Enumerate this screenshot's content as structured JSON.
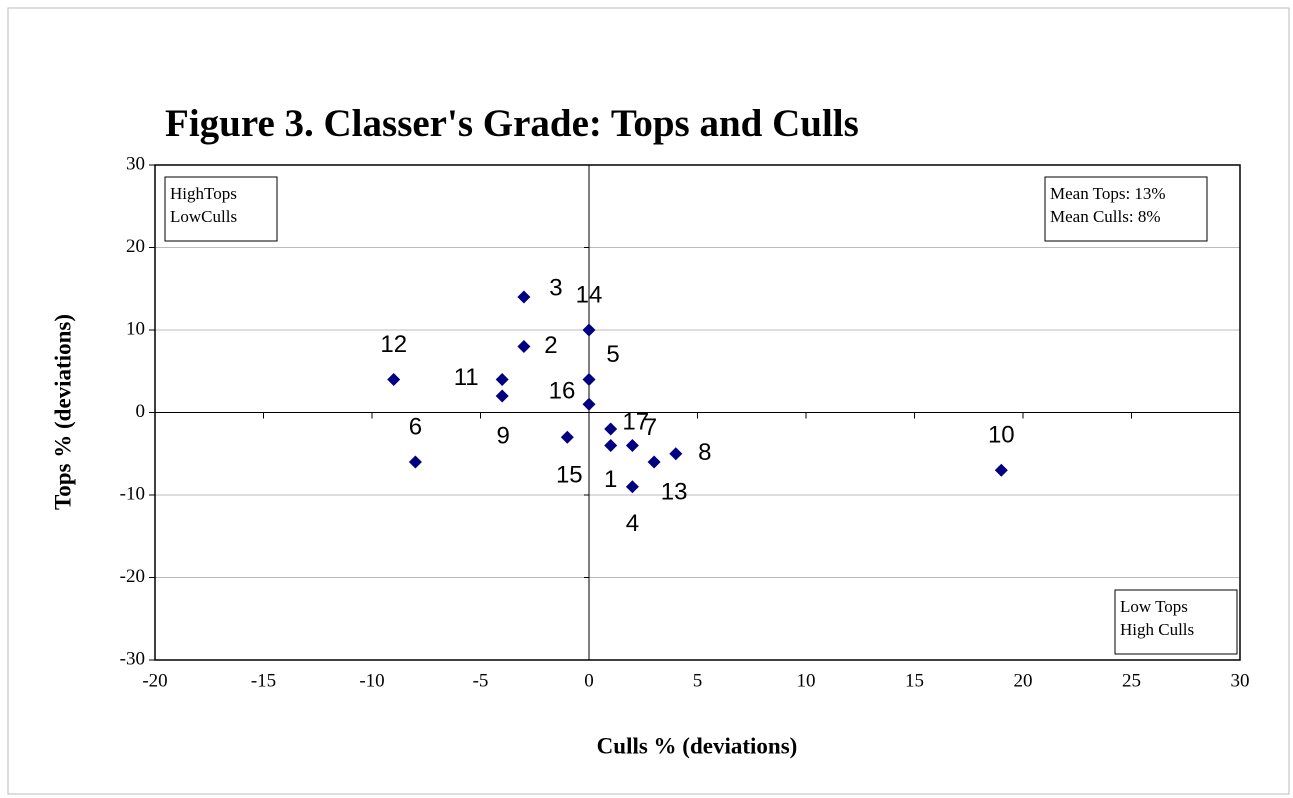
{
  "chart_data": {
    "type": "scatter",
    "title": "Figure 3. Classer's Grade: Tops and Culls",
    "x_label": "Culls % (deviations)",
    "y_label": "Tops % (deviations)",
    "xlim": [
      -20,
      30
    ],
    "xticks": [
      -20,
      -15,
      -10,
      -5,
      0,
      5,
      10,
      15,
      20,
      25,
      30
    ],
    "ylim": [
      -30,
      30
    ],
    "yticks": [
      -30,
      -20,
      -10,
      0,
      10,
      20,
      30
    ],
    "grid": true,
    "series": [
      {
        "color": "#000080",
        "point_labels": [
          "1",
          "2",
          "3",
          "4",
          "5",
          "6",
          "7",
          "8",
          "9",
          "10",
          "11",
          "12",
          "13",
          "14",
          "15",
          "16",
          "17"
        ],
        "x": [
          1,
          -3,
          -3,
          2,
          0,
          -8,
          2,
          4,
          -4,
          19,
          -4,
          -9,
          3,
          0,
          -1,
          0,
          1
        ],
        "values": [
          -4,
          8,
          14,
          -9,
          4,
          -6,
          -4,
          -5,
          2,
          -7,
          4,
          4,
          -6,
          10,
          -3,
          1,
          -2
        ]
      }
    ],
    "annotations": [
      {
        "lines": [
          "HighTops",
          "LowCulls"
        ]
      },
      {
        "lines": [
          "Mean Tops: 13%",
          "Mean Culls: 8%"
        ]
      },
      {
        "lines": [
          "Low Tops",
          "High Culls"
        ]
      }
    ]
  }
}
